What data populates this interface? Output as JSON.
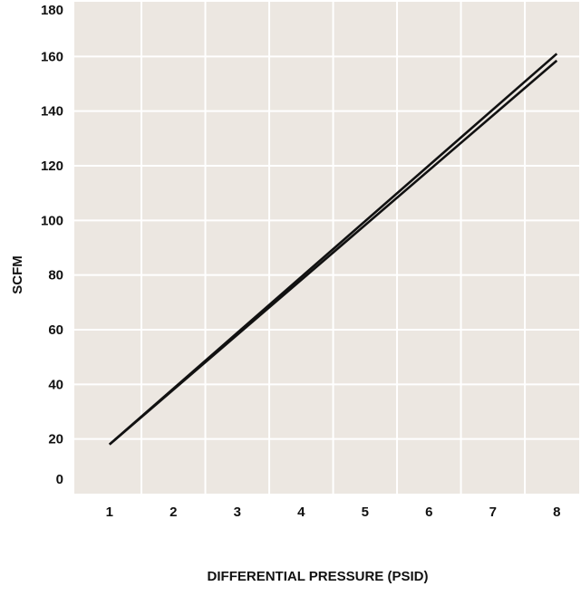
{
  "chart_data": {
    "type": "line",
    "title": "",
    "xlabel": "DIFFERENTIAL PRESSURE (PSID)",
    "ylabel": "SCFM",
    "xlim": [
      0.45,
      8.35
    ],
    "ylim": [
      0,
      180
    ],
    "xticks": [
      "1",
      "2",
      "3",
      "4",
      "5",
      "6",
      "7",
      "8"
    ],
    "yticks": [
      "0",
      "20",
      "40",
      "60",
      "80",
      "100",
      "120",
      "140",
      "160",
      "180"
    ],
    "grid": true,
    "legend": "none",
    "series": [
      {
        "x": [
          1,
          8
        ],
        "y": [
          18,
          161
        ]
      },
      {
        "x": [
          1,
          8
        ],
        "y": [
          18,
          158.5
        ]
      }
    ],
    "colors": {
      "plot_background": "#ece7e1",
      "grid": "#ffffff",
      "line": "#111111",
      "text": "#111111"
    }
  }
}
